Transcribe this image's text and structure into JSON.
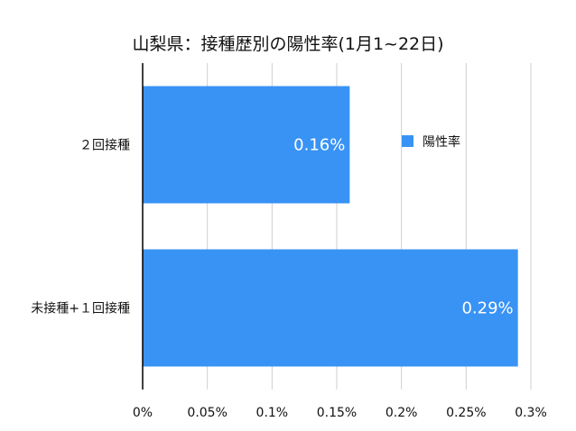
{
  "chart_data": {
    "type": "bar",
    "orientation": "horizontal",
    "title": "山梨県：接種歴別の陽性率(1月1~22日)",
    "categories": [
      "２回接種",
      "未接種+１回接種"
    ],
    "series": [
      {
        "name": "陽性率",
        "values": [
          0.16,
          0.29
        ],
        "color": "#3993f5"
      }
    ],
    "data_labels": [
      "0.16%",
      "0.29%"
    ],
    "x_ticks": [
      0,
      0.05,
      0.1,
      0.15,
      0.2,
      0.25,
      0.3
    ],
    "x_tick_labels": [
      "0%",
      "0.05%",
      "0.1%",
      "0.15%",
      "0.2%",
      "0.25%",
      "0.3%"
    ],
    "xlim": [
      0,
      0.3
    ],
    "xlabel": "",
    "ylabel": "",
    "grid": "vertical",
    "legend": "top-right inside"
  }
}
